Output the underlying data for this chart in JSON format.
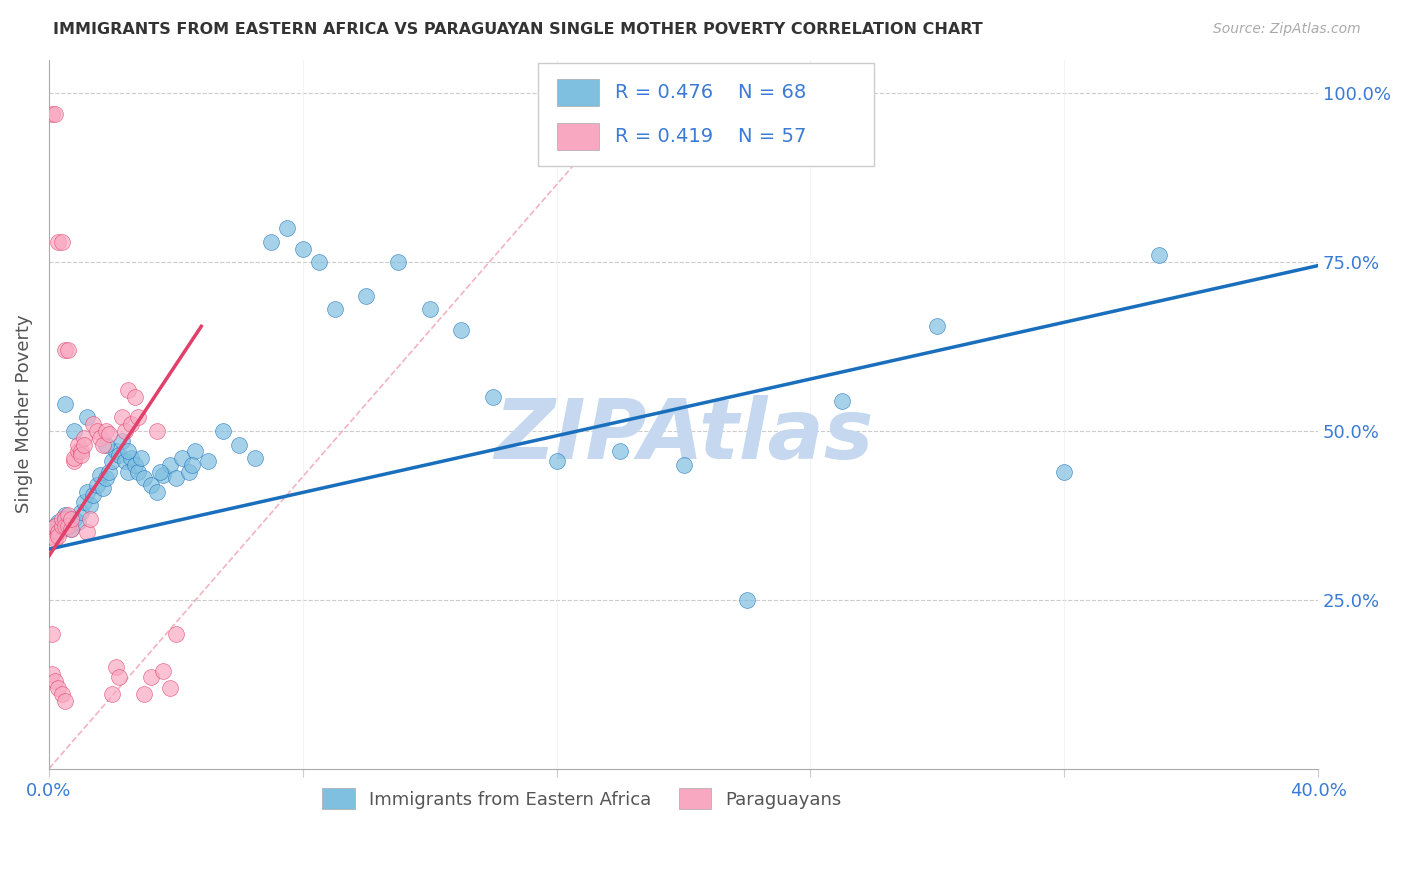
{
  "title": "IMMIGRANTS FROM EASTERN AFRICA VS PARAGUAYAN SINGLE MOTHER POVERTY CORRELATION CHART",
  "source": "Source: ZipAtlas.com",
  "ylabel": "Single Mother Poverty",
  "xlim": [
    0.0,
    0.4
  ],
  "ylim": [
    0.0,
    1.05
  ],
  "yticks": [
    0.25,
    0.5,
    0.75,
    1.0
  ],
  "ytick_labels": [
    "25.0%",
    "50.0%",
    "75.0%",
    "100.0%"
  ],
  "xticks": [
    0.0,
    0.08,
    0.16,
    0.24,
    0.32,
    0.4
  ],
  "xtick_labels": [
    "0.0%",
    "",
    "",
    "",
    "",
    "40.0%"
  ],
  "legend_r1": "R = 0.476",
  "legend_n1": "N = 68",
  "legend_r2": "R = 0.419",
  "legend_n2": "N = 57",
  "color_blue": "#7fbfdf",
  "color_pink": "#f8a8c0",
  "color_line_blue": "#1a6fbd",
  "color_line_pink": "#e0406a",
  "color_ref_line": "#f0a0b0",
  "color_text_blue": "#3a7bd5",
  "color_text_dark": "#333333",
  "watermark": "ZIPAtlas",
  "watermark_color": "#c5d8ef",
  "label_blue": "Immigrants from Eastern Africa",
  "label_pink": "Paraguayans",
  "blue_trend_x": [
    0.0,
    0.4
  ],
  "blue_trend_y": [
    0.325,
    0.745
  ],
  "pink_trend_x": [
    0.0,
    0.048
  ],
  "pink_trend_y": [
    0.315,
    0.655
  ],
  "ref_line_x": [
    0.0,
    0.185
  ],
  "ref_line_y": [
    0.0,
    1.0
  ],
  "blue_x": [
    0.001,
    0.002,
    0.003,
    0.004,
    0.005,
    0.005,
    0.006,
    0.007,
    0.008,
    0.009,
    0.01,
    0.011,
    0.012,
    0.013,
    0.014,
    0.015,
    0.016,
    0.017,
    0.018,
    0.019,
    0.02,
    0.021,
    0.022,
    0.023,
    0.024,
    0.025,
    0.026,
    0.027,
    0.028,
    0.029,
    0.03,
    0.032,
    0.034,
    0.036,
    0.038,
    0.04,
    0.042,
    0.044,
    0.046,
    0.05,
    0.055,
    0.06,
    0.065,
    0.07,
    0.075,
    0.08,
    0.085,
    0.09,
    0.1,
    0.11,
    0.12,
    0.13,
    0.14,
    0.16,
    0.18,
    0.2,
    0.22,
    0.25,
    0.28,
    0.32,
    0.35,
    0.005,
    0.008,
    0.012,
    0.018,
    0.025,
    0.035,
    0.045
  ],
  "blue_y": [
    0.355,
    0.36,
    0.365,
    0.355,
    0.37,
    0.375,
    0.36,
    0.355,
    0.37,
    0.365,
    0.38,
    0.395,
    0.41,
    0.39,
    0.405,
    0.42,
    0.435,
    0.415,
    0.43,
    0.44,
    0.455,
    0.47,
    0.465,
    0.485,
    0.455,
    0.44,
    0.46,
    0.45,
    0.44,
    0.46,
    0.43,
    0.42,
    0.41,
    0.435,
    0.45,
    0.43,
    0.46,
    0.44,
    0.47,
    0.455,
    0.5,
    0.48,
    0.46,
    0.78,
    0.8,
    0.77,
    0.75,
    0.68,
    0.7,
    0.75,
    0.68,
    0.65,
    0.55,
    0.455,
    0.47,
    0.45,
    0.25,
    0.545,
    0.655,
    0.44,
    0.76,
    0.54,
    0.5,
    0.52,
    0.48,
    0.47,
    0.44,
    0.45
  ],
  "pink_x": [
    0.001,
    0.001,
    0.002,
    0.002,
    0.003,
    0.003,
    0.004,
    0.004,
    0.005,
    0.005,
    0.006,
    0.006,
    0.007,
    0.007,
    0.008,
    0.008,
    0.009,
    0.009,
    0.01,
    0.01,
    0.011,
    0.011,
    0.012,
    0.013,
    0.014,
    0.015,
    0.016,
    0.017,
    0.018,
    0.019,
    0.02,
    0.021,
    0.022,
    0.023,
    0.024,
    0.025,
    0.026,
    0.027,
    0.028,
    0.03,
    0.032,
    0.034,
    0.036,
    0.038,
    0.04,
    0.001,
    0.002,
    0.003,
    0.004,
    0.005,
    0.006,
    0.001,
    0.001,
    0.002,
    0.003,
    0.004,
    0.005
  ],
  "pink_y": [
    0.345,
    0.355,
    0.34,
    0.36,
    0.35,
    0.345,
    0.36,
    0.37,
    0.37,
    0.36,
    0.375,
    0.36,
    0.355,
    0.37,
    0.455,
    0.46,
    0.47,
    0.48,
    0.47,
    0.465,
    0.49,
    0.48,
    0.35,
    0.37,
    0.51,
    0.5,
    0.49,
    0.48,
    0.5,
    0.495,
    0.11,
    0.15,
    0.135,
    0.52,
    0.5,
    0.56,
    0.51,
    0.55,
    0.52,
    0.11,
    0.135,
    0.5,
    0.145,
    0.12,
    0.2,
    0.97,
    0.97,
    0.78,
    0.78,
    0.62,
    0.62,
    0.2,
    0.14,
    0.13,
    0.12,
    0.11,
    0.1
  ]
}
